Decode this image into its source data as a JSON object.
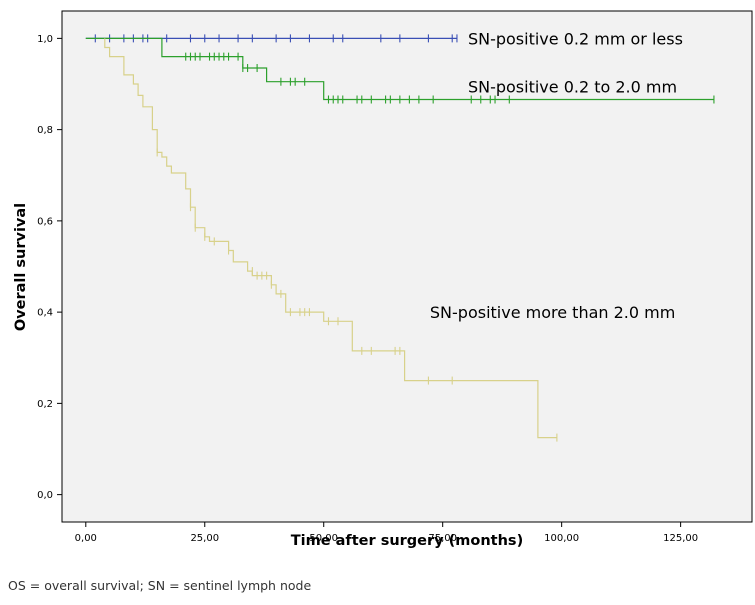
{
  "chart_data": {
    "type": "line",
    "step": true,
    "xlabel": "Time after surgery (months)",
    "ylabel": "Overall survival",
    "xlim": [
      -5,
      140
    ],
    "ylim": [
      -0.06,
      1.06
    ],
    "xticks": [
      0,
      25,
      50,
      75,
      100,
      125
    ],
    "xtick_labels": [
      "0,00",
      "25,00",
      "50,00",
      "75,00",
      "100,00",
      "125,00"
    ],
    "yticks": [
      0,
      0.2,
      0.4,
      0.6,
      0.8,
      1.0
    ],
    "ytick_labels": [
      "0,0",
      "0,2",
      "0,4",
      "0,6",
      "0,8",
      "1,0"
    ],
    "background": "#f2f2f2",
    "grid": false,
    "series": [
      {
        "color": "#3a4fb5",
        "steps": [
          [
            0,
            1.0
          ],
          [
            78,
            1.0
          ]
        ],
        "censors": [
          2,
          5,
          8,
          10,
          12,
          13,
          17,
          22,
          25,
          28,
          32,
          35,
          40,
          43,
          47,
          52,
          54,
          62,
          66,
          72,
          77,
          78
        ]
      },
      {
        "color": "#2ca02c",
        "steps": [
          [
            0,
            1.0
          ],
          [
            16,
            1.0
          ],
          [
            16,
            0.96
          ],
          [
            33,
            0.96
          ],
          [
            33,
            0.935
          ],
          [
            38,
            0.935
          ],
          [
            38,
            0.905
          ],
          [
            50,
            0.905
          ],
          [
            50,
            0.866
          ],
          [
            132,
            0.866
          ]
        ],
        "censors": [
          [
            21,
            0.96
          ],
          [
            22,
            0.96
          ],
          [
            23,
            0.96
          ],
          [
            24,
            0.96
          ],
          [
            26,
            0.96
          ],
          [
            27,
            0.96
          ],
          [
            28,
            0.96
          ],
          [
            29,
            0.96
          ],
          [
            30,
            0.96
          ],
          [
            32,
            0.96
          ],
          [
            33,
            0.935
          ],
          [
            34,
            0.935
          ],
          [
            36,
            0.935
          ],
          [
            41,
            0.905
          ],
          [
            43,
            0.905
          ],
          [
            44,
            0.905
          ],
          [
            46,
            0.905
          ],
          [
            51,
            0.866
          ],
          [
            52,
            0.866
          ],
          [
            53,
            0.866
          ],
          [
            54,
            0.866
          ],
          [
            57,
            0.866
          ],
          [
            58,
            0.866
          ],
          [
            60,
            0.866
          ],
          [
            63,
            0.866
          ],
          [
            64,
            0.866
          ],
          [
            66,
            0.866
          ],
          [
            68,
            0.866
          ],
          [
            70,
            0.866
          ],
          [
            73,
            0.866
          ],
          [
            81,
            0.866
          ],
          [
            83,
            0.866
          ],
          [
            85,
            0.866
          ],
          [
            86,
            0.866
          ],
          [
            89,
            0.866
          ],
          [
            132,
            0.866
          ]
        ]
      },
      {
        "color": "#d8d18a",
        "steps": [
          [
            4,
            1.0
          ],
          [
            4,
            0.98
          ],
          [
            5,
            0.98
          ],
          [
            5,
            0.96
          ],
          [
            8,
            0.96
          ],
          [
            8,
            0.92
          ],
          [
            10,
            0.92
          ],
          [
            10,
            0.9
          ],
          [
            11,
            0.9
          ],
          [
            11,
            0.875
          ],
          [
            12,
            0.875
          ],
          [
            12,
            0.85
          ],
          [
            14,
            0.85
          ],
          [
            14,
            0.8
          ],
          [
            15,
            0.8
          ],
          [
            15,
            0.75
          ],
          [
            16,
            0.75
          ],
          [
            16,
            0.74
          ],
          [
            17,
            0.74
          ],
          [
            17,
            0.72
          ],
          [
            18,
            0.72
          ],
          [
            18,
            0.705
          ],
          [
            21,
            0.705
          ],
          [
            21,
            0.67
          ],
          [
            22,
            0.67
          ],
          [
            22,
            0.63
          ],
          [
            23,
            0.63
          ],
          [
            23,
            0.585
          ],
          [
            25,
            0.585
          ],
          [
            25,
            0.565
          ],
          [
            26,
            0.565
          ],
          [
            26,
            0.555
          ],
          [
            30,
            0.555
          ],
          [
            30,
            0.535
          ],
          [
            31,
            0.535
          ],
          [
            31,
            0.51
          ],
          [
            34,
            0.51
          ],
          [
            34,
            0.49
          ],
          [
            35,
            0.49
          ],
          [
            35,
            0.48
          ],
          [
            39,
            0.48
          ],
          [
            39,
            0.46
          ],
          [
            40,
            0.46
          ],
          [
            40,
            0.44
          ],
          [
            42,
            0.44
          ],
          [
            42,
            0.4
          ],
          [
            50,
            0.4
          ],
          [
            50,
            0.38
          ],
          [
            56,
            0.38
          ],
          [
            56,
            0.315
          ],
          [
            67,
            0.315
          ],
          [
            67,
            0.25
          ],
          [
            95,
            0.25
          ],
          [
            95,
            0.125
          ],
          [
            99,
            0.125
          ]
        ],
        "censors": [
          [
            15,
            0.75
          ],
          [
            22,
            0.63
          ],
          [
            23,
            0.585
          ],
          [
            25,
            0.565
          ],
          [
            27,
            0.555
          ],
          [
            30,
            0.535
          ],
          [
            35,
            0.49
          ],
          [
            36,
            0.48
          ],
          [
            37,
            0.48
          ],
          [
            38,
            0.48
          ],
          [
            39,
            0.46
          ],
          [
            41,
            0.44
          ],
          [
            43,
            0.4
          ],
          [
            45,
            0.4
          ],
          [
            46,
            0.4
          ],
          [
            47,
            0.4
          ],
          [
            51,
            0.38
          ],
          [
            53,
            0.38
          ],
          [
            58,
            0.315
          ],
          [
            60,
            0.315
          ],
          [
            65,
            0.315
          ],
          [
            66,
            0.315
          ],
          [
            72,
            0.25
          ],
          [
            77,
            0.25
          ],
          [
            99,
            0.125
          ]
        ]
      }
    ],
    "annotations": [
      {
        "text": "SN-positive 0.2 mm or less",
        "x": 78,
        "y": 1.0
      },
      {
        "text": "SN-positive 0.2 to 2.0 mm",
        "x": 78,
        "y": 0.895
      },
      {
        "text": "SN-positive more than 2.0 mm",
        "x": 70,
        "y": 0.4
      }
    ]
  },
  "caption": "OS = overall survival; SN = sentinel lymph node"
}
